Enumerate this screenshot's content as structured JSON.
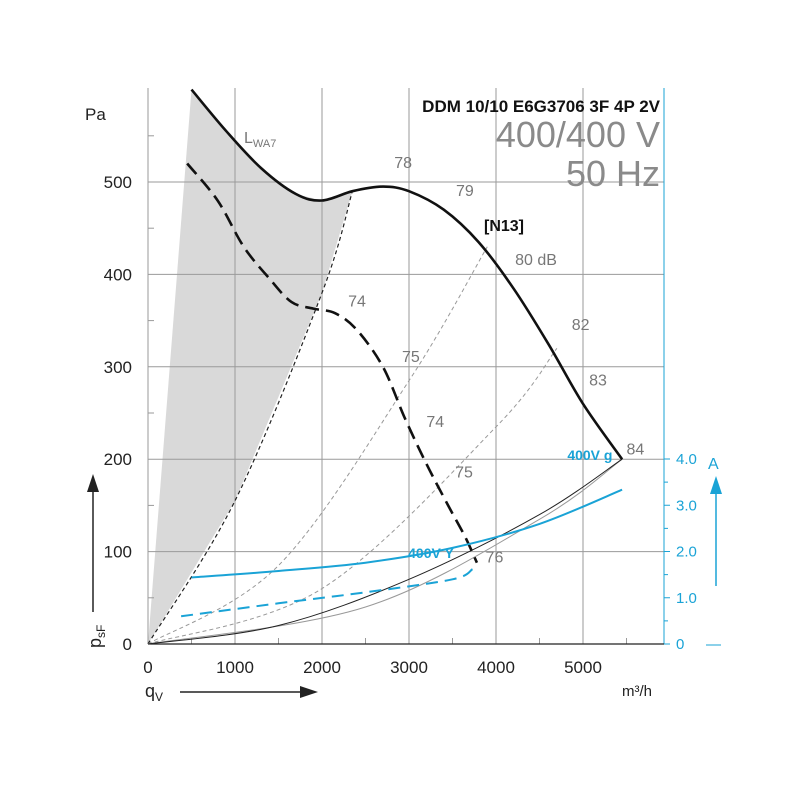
{
  "chart_data": {
    "type": "line",
    "title": "DDM 10/10 E6G3706 3F 4P 2V",
    "subtitle_voltage": "400/400 V",
    "subtitle_freq": "50 Hz",
    "xlabel": "qV",
    "xunit": "m³/h",
    "ylabel": "psF",
    "yunit": "Pa",
    "right_unit": "A",
    "xlim": [
      0,
      5700
    ],
    "ylim": [
      0,
      580
    ],
    "xticks": [
      0,
      1000,
      2000,
      3000,
      4000,
      5000
    ],
    "yticks": [
      0,
      100,
      200,
      300,
      400,
      500
    ],
    "right_ticks": [
      "0",
      "1.0",
      "2.0",
      "3.0",
      "4.0"
    ],
    "right_ticks_values": [
      0,
      1,
      2,
      3,
      4
    ],
    "right_dash_label": "—",
    "grid": true,
    "colors": {
      "pressure": "#111111",
      "current": "#1aa3d6",
      "sound_area": "#d9d9d9",
      "sound_lines": "#999999"
    },
    "sound_label": "LWA7",
    "sound_label_main": "L",
    "sound_label_sub": "WA7",
    "point_label": "[N13]",
    "series": [
      {
        "name": "",
        "style": "solid-thick",
        "color": "#111111",
        "x": [
          500,
          900,
          1300,
          1700,
          2000,
          2350,
          2700,
          3000,
          3400,
          3800,
          4200,
          4600,
          5000,
          5450
        ],
        "y": [
          600,
          555,
          515,
          487,
          480,
          490,
          495,
          490,
          470,
          435,
          385,
          325,
          260,
          200
        ]
      },
      {
        "name": "",
        "style": "dashed-thick",
        "color": "#111111",
        "x": [
          450,
          800,
          1100,
          1400,
          1650,
          1900,
          2150,
          2400,
          2700,
          2950,
          3200,
          3450,
          3650,
          3780
        ],
        "y": [
          520,
          480,
          430,
          395,
          370,
          363,
          358,
          340,
          300,
          245,
          195,
          150,
          115,
          88
        ]
      },
      {
        "name": "400V g",
        "style": "solid",
        "color": "#1aa3d6",
        "x": [
          500,
          1500,
          2500,
          3500,
          4500,
          5450
        ],
        "y": [
          72,
          79,
          88,
          104,
          130,
          167
        ]
      },
      {
        "name": "400V Y",
        "style": "dashed",
        "color": "#1aa3d6",
        "x": [
          380,
          1500,
          2500,
          3500,
          3730
        ],
        "y": [
          30,
          44,
          56,
          70,
          81
        ]
      }
    ],
    "sound_lines": [
      {
        "label": "74",
        "x": [
          0,
          1000,
          2000,
          2350
        ],
        "y": [
          0,
          155,
          380,
          490
        ]
      },
      {
        "label": "75",
        "x": [
          0,
          1500,
          3000,
          3900
        ],
        "y": [
          0,
          85,
          285,
          430
        ]
      },
      {
        "label": "82",
        "x": [
          0,
          2000,
          4000,
          4700
        ],
        "y": [
          0,
          60,
          235,
          320
        ]
      },
      {
        "label": "84",
        "x": [
          0,
          2500,
          4500,
          5450
        ],
        "y": [
          0,
          40,
          135,
          200
        ]
      }
    ],
    "db_labels": [
      {
        "text": "78",
        "x": 2830,
        "y": 515
      },
      {
        "text": "79",
        "x": 3540,
        "y": 485
      },
      {
        "text": "80 dB",
        "x": 4220,
        "y": 410
      },
      {
        "text": "74",
        "x": 2300,
        "y": 365
      },
      {
        "text": "75",
        "x": 2920,
        "y": 305
      },
      {
        "text": "82",
        "x": 4870,
        "y": 340
      },
      {
        "text": "83",
        "x": 5070,
        "y": 280
      },
      {
        "text": "74",
        "x": 3200,
        "y": 235
      },
      {
        "text": "75",
        "x": 3530,
        "y": 180
      },
      {
        "text": "84",
        "x": 5500,
        "y": 205
      },
      {
        "text": "76",
        "x": 3880,
        "y": 88
      }
    ]
  }
}
